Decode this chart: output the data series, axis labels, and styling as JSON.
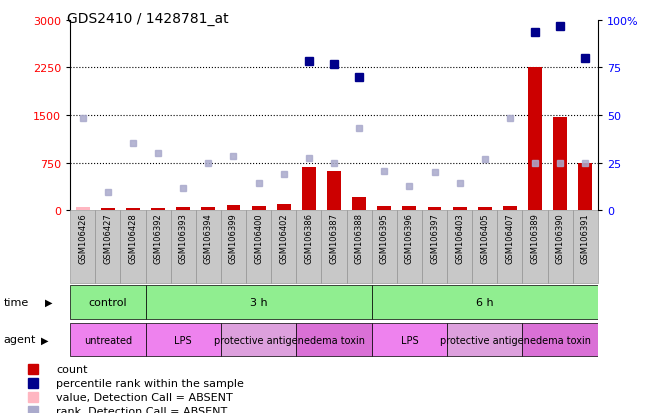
{
  "title": "GDS2410 / 1428781_at",
  "samples": [
    "GSM106426",
    "GSM106427",
    "GSM106428",
    "GSM106392",
    "GSM106393",
    "GSM106394",
    "GSM106399",
    "GSM106400",
    "GSM106402",
    "GSM106386",
    "GSM106387",
    "GSM106388",
    "GSM106395",
    "GSM106396",
    "GSM106397",
    "GSM106403",
    "GSM106405",
    "GSM106407",
    "GSM106389",
    "GSM106390",
    "GSM106391"
  ],
  "count_values": [
    50,
    40,
    30,
    35,
    45,
    55,
    80,
    65,
    90,
    680,
    620,
    200,
    60,
    70,
    50,
    45,
    55,
    60,
    2250,
    1460,
    750
  ],
  "count_absent": [
    true,
    false,
    false,
    false,
    false,
    false,
    false,
    false,
    false,
    false,
    false,
    false,
    false,
    false,
    false,
    false,
    false,
    false,
    false,
    false,
    false
  ],
  "rank_values": [
    1450,
    280,
    1050,
    900,
    350,
    750,
    850,
    420,
    570,
    820,
    750,
    1300,
    620,
    380,
    600,
    420,
    800,
    1450,
    750,
    750,
    750
  ],
  "rank_absent": [
    false,
    true,
    true,
    true,
    true,
    true,
    true,
    true,
    true,
    false,
    false,
    false,
    true,
    true,
    true,
    true,
    true,
    false,
    false,
    false,
    false
  ],
  "percentile_values": [
    null,
    null,
    null,
    null,
    null,
    null,
    null,
    null,
    null,
    2350,
    2300,
    2100,
    null,
    null,
    null,
    null,
    null,
    null,
    2800,
    2900,
    2400
  ],
  "time_groups": [
    {
      "label": "control",
      "start": 0,
      "end": 3,
      "color": "#90EE90"
    },
    {
      "label": "3 h",
      "start": 3,
      "end": 12,
      "color": "#90EE90"
    },
    {
      "label": "6 h",
      "start": 12,
      "end": 21,
      "color": "#90EE90"
    }
  ],
  "agent_groups": [
    {
      "label": "untreated",
      "start": 0,
      "end": 3,
      "color": "#EE82EE"
    },
    {
      "label": "LPS",
      "start": 3,
      "end": 6,
      "color": "#EE82EE"
    },
    {
      "label": "protective antigen",
      "start": 6,
      "end": 9,
      "color": "#DDA0DD"
    },
    {
      "label": "edema toxin",
      "start": 9,
      "end": 12,
      "color": "#DA70D6"
    },
    {
      "label": "LPS",
      "start": 12,
      "end": 15,
      "color": "#EE82EE"
    },
    {
      "label": "protective antigen",
      "start": 15,
      "end": 18,
      "color": "#DDA0DD"
    },
    {
      "label": "edema toxin",
      "start": 18,
      "end": 21,
      "color": "#DA70D6"
    }
  ],
  "ylim_left": [
    0,
    3000
  ],
  "ylim_right": [
    0,
    100
  ],
  "yticks_left": [
    0,
    750,
    1500,
    2250,
    3000
  ],
  "yticks_right": [
    0,
    25,
    50,
    75,
    100
  ],
  "count_color": "#CC0000",
  "count_absent_color": "#FFB6C1",
  "percentile_color": "#00008B",
  "rank_color": "#AAAACC",
  "dotted_lines": [
    750,
    1500,
    2250
  ],
  "sample_box_color": "#C8C8C8",
  "legend_items": [
    {
      "color": "#CC0000",
      "label": "count"
    },
    {
      "color": "#00008B",
      "label": "percentile rank within the sample"
    },
    {
      "color": "#FFB6C1",
      "label": "value, Detection Call = ABSENT"
    },
    {
      "color": "#AAAACC",
      "label": "rank, Detection Call = ABSENT"
    }
  ]
}
